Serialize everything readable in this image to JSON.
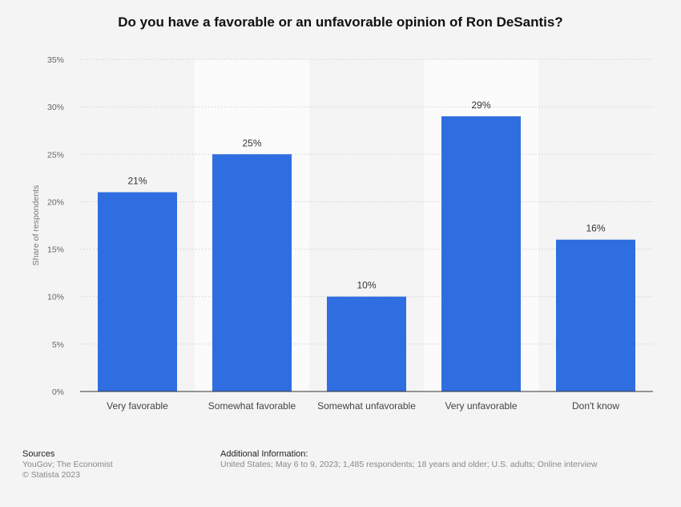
{
  "chart_data": {
    "type": "bar",
    "title": "Do you have a favorable or an unfavorable opinion of Ron DeSantis?",
    "ylabel": "Share of respondents",
    "xlabel": "",
    "categories": [
      "Very favorable",
      "Somewhat favorable",
      "Somewhat unfavorable",
      "Very unfavorable",
      "Don't know"
    ],
    "values": [
      21,
      25,
      10,
      29,
      16
    ],
    "value_labels": [
      "21%",
      "25%",
      "10%",
      "29%",
      "16%"
    ],
    "ylim": [
      0,
      35
    ],
    "yticks": [
      0,
      5,
      10,
      15,
      20,
      25,
      30,
      35
    ],
    "ytick_labels": [
      "0%",
      "5%",
      "10%",
      "15%",
      "20%",
      "25%",
      "30%",
      "35%"
    ],
    "grid": true,
    "legend": "none",
    "bar_color": "#2f6ee0",
    "band_color": "#fbfbfb"
  },
  "footer": {
    "sources_heading": "Sources",
    "sources_text": "YouGov; The Economist",
    "copyright": "© Statista 2023",
    "additional_heading": "Additional Information:",
    "additional_text": "United States; May 6 to 9, 2023; 1,485 respondents; 18 years and older; U.S. adults; Online interview"
  }
}
